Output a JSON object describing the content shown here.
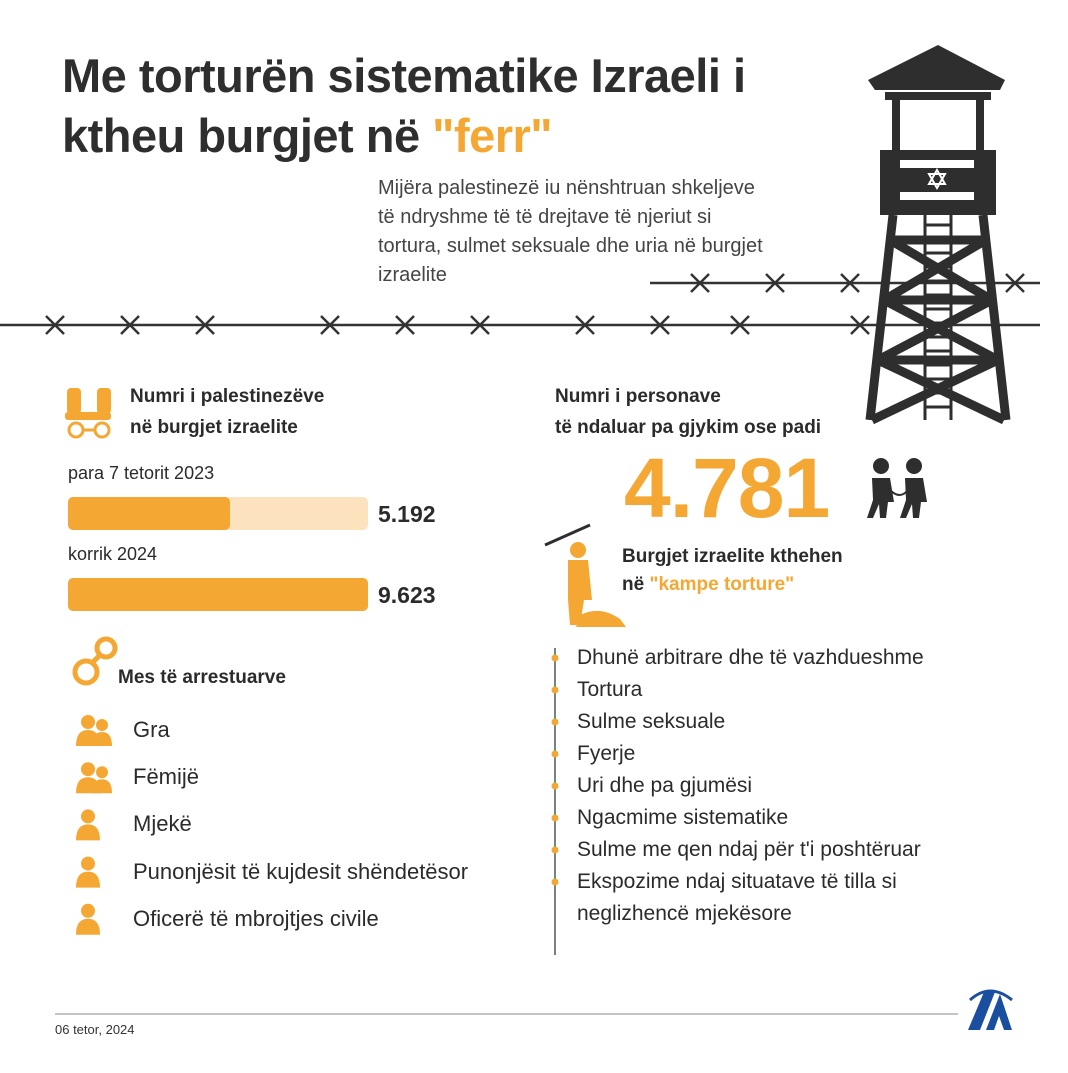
{
  "title": {
    "lines": [
      "Me torturën sistematike Izraeli i",
      "ktheu burgjet në"
    ],
    "highlight": "\"ferr\""
  },
  "subtitle": [
    "Mijëra palestinezë iu nënshtruan shkeljeve",
    "të ndryshme të të drejtave të njeriut si",
    "tortura, sulmet seksuale dhe uria në burgjet",
    "izraelite"
  ],
  "prisoners": {
    "heading": [
      "Numri i palestinezëve",
      "në burgjet izraelite"
    ],
    "bars": [
      {
        "label": "para 7 tetorit 2023",
        "value": 5192,
        "value_label": "5.192"
      },
      {
        "label": "korrik 2024",
        "value": 9623,
        "value_label": "9.623"
      }
    ]
  },
  "arrested": {
    "heading": "Mes të arrestuarve",
    "items": [
      "Gra",
      "Fëmijë",
      "Mjekë",
      "Punonjësit të kujdesit shëndetësor",
      "Oficerë të mbrojtjes civile"
    ]
  },
  "detained": {
    "heading": [
      "Numri i personave",
      "të ndaluar pa gjykim ose padi"
    ],
    "value": "4.781"
  },
  "camps": {
    "heading": [
      "Burgjet izraelite kthehen",
      "në"
    ],
    "highlight": "\"kampe torture\"",
    "items": [
      "Dhunë arbitrare dhe të vazhdueshme",
      "Tortura",
      "Sulme seksuale",
      "Fyerje",
      "Uri dhe pa gjumësi",
      "Ngacmime sistematike",
      "Sulme me qen ndaj për t'i poshtëruar",
      [
        "Ekspozime ndaj situatave të tilla si",
        "neglizhencë mjekësore"
      ]
    ]
  },
  "footer": {
    "date": "06 tetor, 2024"
  }
}
